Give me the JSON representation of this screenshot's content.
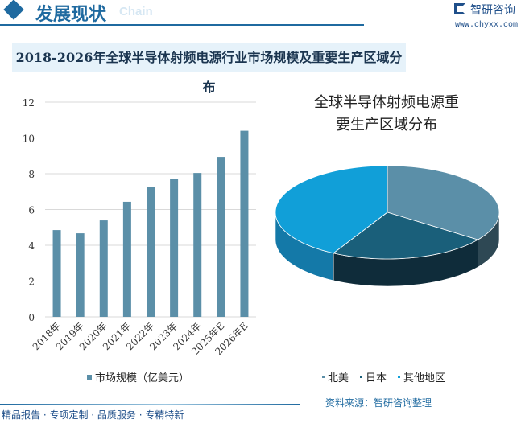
{
  "header": {
    "title": "发展现状",
    "subtitle": "Chain",
    "brand": "智研咨询",
    "url": "www.chyxx.com"
  },
  "main_title": "2018-2026年全球半导体射频电源行业市场规模及重要生产区域分布",
  "chart_data": [
    {
      "type": "bar",
      "title": "",
      "categories": [
        "2018年",
        "2019年",
        "2020年",
        "2021年",
        "2022年",
        "2023年",
        "2024年",
        "2025年E",
        "2026年E"
      ],
      "series": [
        {
          "name": "市场规模（亿美元）",
          "values": [
            4.85,
            4.67,
            5.39,
            6.43,
            7.28,
            7.73,
            8.04,
            8.94,
            10.4
          ],
          "color": "#5b8fa8"
        }
      ],
      "ylim": [
        0,
        12
      ],
      "yticks": [
        0,
        2,
        4,
        6,
        8,
        10,
        12
      ],
      "grid": true,
      "legend": "bottom"
    },
    {
      "type": "pie",
      "title": "全球半导体射频电源重要生产区域分布",
      "title_lines": [
        "全球半导体射频电源重",
        "要生产区域分布"
      ],
      "labels": [
        "北美",
        "日本",
        "其他地区"
      ],
      "values": [
        35,
        23,
        42
      ],
      "colors": [
        "#5b8fa8",
        "#1a5f7a",
        "#119fd8"
      ],
      "side_colors": [
        "#2e4854",
        "#0f2c3a",
        "#1479a8"
      ],
      "legend": "bottom",
      "style": "3d"
    }
  ],
  "footer": {
    "left": "精品报告 · 专项定制 · 品质服务 · 专精特新",
    "source": "资料来源：智研咨询整理"
  }
}
